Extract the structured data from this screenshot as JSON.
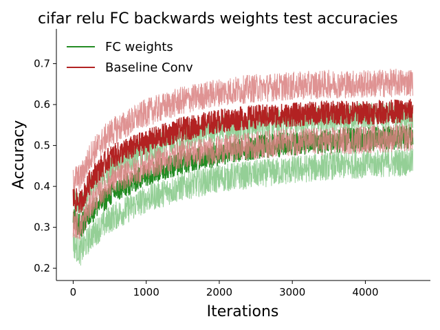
{
  "chart_data": {
    "type": "line",
    "title": "cifar relu FC backwards weights test accuracies",
    "xlabel": "Iterations",
    "ylabel": "Accuracy",
    "xlim": [
      -230,
      4890
    ],
    "ylim": [
      0.17,
      0.785
    ],
    "xticks": [
      0,
      1000,
      2000,
      3000,
      4000
    ],
    "yticks": [
      0.2,
      0.3,
      0.4,
      0.5,
      0.6,
      0.7
    ],
    "xtick_labels": [
      "0",
      "1000",
      "2000",
      "3000",
      "4000"
    ],
    "ytick_labels": [
      "0.2",
      "0.3",
      "0.4",
      "0.5",
      "0.6",
      "0.7"
    ],
    "grid": false,
    "legend": "upper left",
    "x_max": 4650,
    "series": [
      {
        "name": "FC weights",
        "color": "#228B22",
        "band_color": "#81c784",
        "mean": {
          "x": [
            0,
            100,
            250,
            500,
            1000,
            1500,
            2000,
            2500,
            3000,
            3500,
            4000,
            4650
          ],
          "y": [
            0.32,
            0.3,
            0.34,
            0.38,
            0.43,
            0.46,
            0.48,
            0.495,
            0.505,
            0.51,
            0.515,
            0.52
          ]
        },
        "upper": {
          "x": [
            0,
            100,
            250,
            500,
            1000,
            1500,
            2000,
            2500,
            3000,
            3500,
            4000,
            4650
          ],
          "y": [
            0.37,
            0.35,
            0.4,
            0.44,
            0.49,
            0.52,
            0.54,
            0.55,
            0.56,
            0.565,
            0.57,
            0.57
          ]
        },
        "lower": {
          "x": [
            0,
            100,
            250,
            500,
            1000,
            1500,
            2000,
            2500,
            3000,
            3500,
            4000,
            4650
          ],
          "y": [
            0.26,
            0.24,
            0.28,
            0.32,
            0.37,
            0.4,
            0.42,
            0.43,
            0.44,
            0.45,
            0.455,
            0.46
          ]
        }
      },
      {
        "name": "Baseline Conv",
        "color": "#B22222",
        "band_color": "#d98080",
        "mean": {
          "x": [
            0,
            100,
            250,
            500,
            1000,
            1500,
            2000,
            2500,
            3000,
            3500,
            4000,
            4650
          ],
          "y": [
            0.37,
            0.36,
            0.42,
            0.47,
            0.51,
            0.54,
            0.56,
            0.57,
            0.575,
            0.58,
            0.58,
            0.585
          ]
        },
        "upper": {
          "x": [
            0,
            100,
            250,
            500,
            1000,
            1500,
            2000,
            2500,
            3000,
            3500,
            4000,
            4650
          ],
          "y": [
            0.42,
            0.42,
            0.48,
            0.53,
            0.58,
            0.61,
            0.63,
            0.64,
            0.645,
            0.65,
            0.65,
            0.655
          ]
        },
        "lower": {
          "x": [
            0,
            100,
            250,
            500,
            1000,
            1500,
            2000,
            2500,
            3000,
            3500,
            4000,
            4650
          ],
          "y": [
            0.31,
            0.3,
            0.36,
            0.41,
            0.45,
            0.48,
            0.49,
            0.5,
            0.51,
            0.51,
            0.515,
            0.52
          ]
        }
      }
    ]
  }
}
